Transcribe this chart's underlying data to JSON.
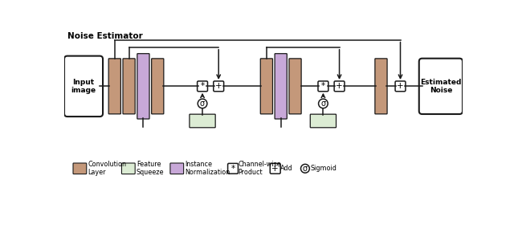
{
  "title": "Noise Estimator",
  "bg": "#ffffff",
  "conv_c": "#c4987a",
  "inst_c": "#c8a8d8",
  "feat_c": "#dcecd4",
  "lc": "#1a1a1a",
  "input_label": "Input\nimage",
  "output_label": "Estimated\nNoise",
  "legend": [
    {
      "type": "rect",
      "color": "#c4987a",
      "label": "Convolution\nLayer"
    },
    {
      "type": "rect",
      "color": "#dcecd4",
      "label": "Feature\nSqueeze"
    },
    {
      "type": "rect",
      "color": "#c8a8d8",
      "label": "Instance\nNormalization"
    },
    {
      "type": "op",
      "symbol": "*",
      "label": "Channel-wise\nProduct"
    },
    {
      "type": "op",
      "symbol": "+",
      "label": "Add"
    },
    {
      "type": "sigma",
      "label": "Sigmoid"
    }
  ]
}
